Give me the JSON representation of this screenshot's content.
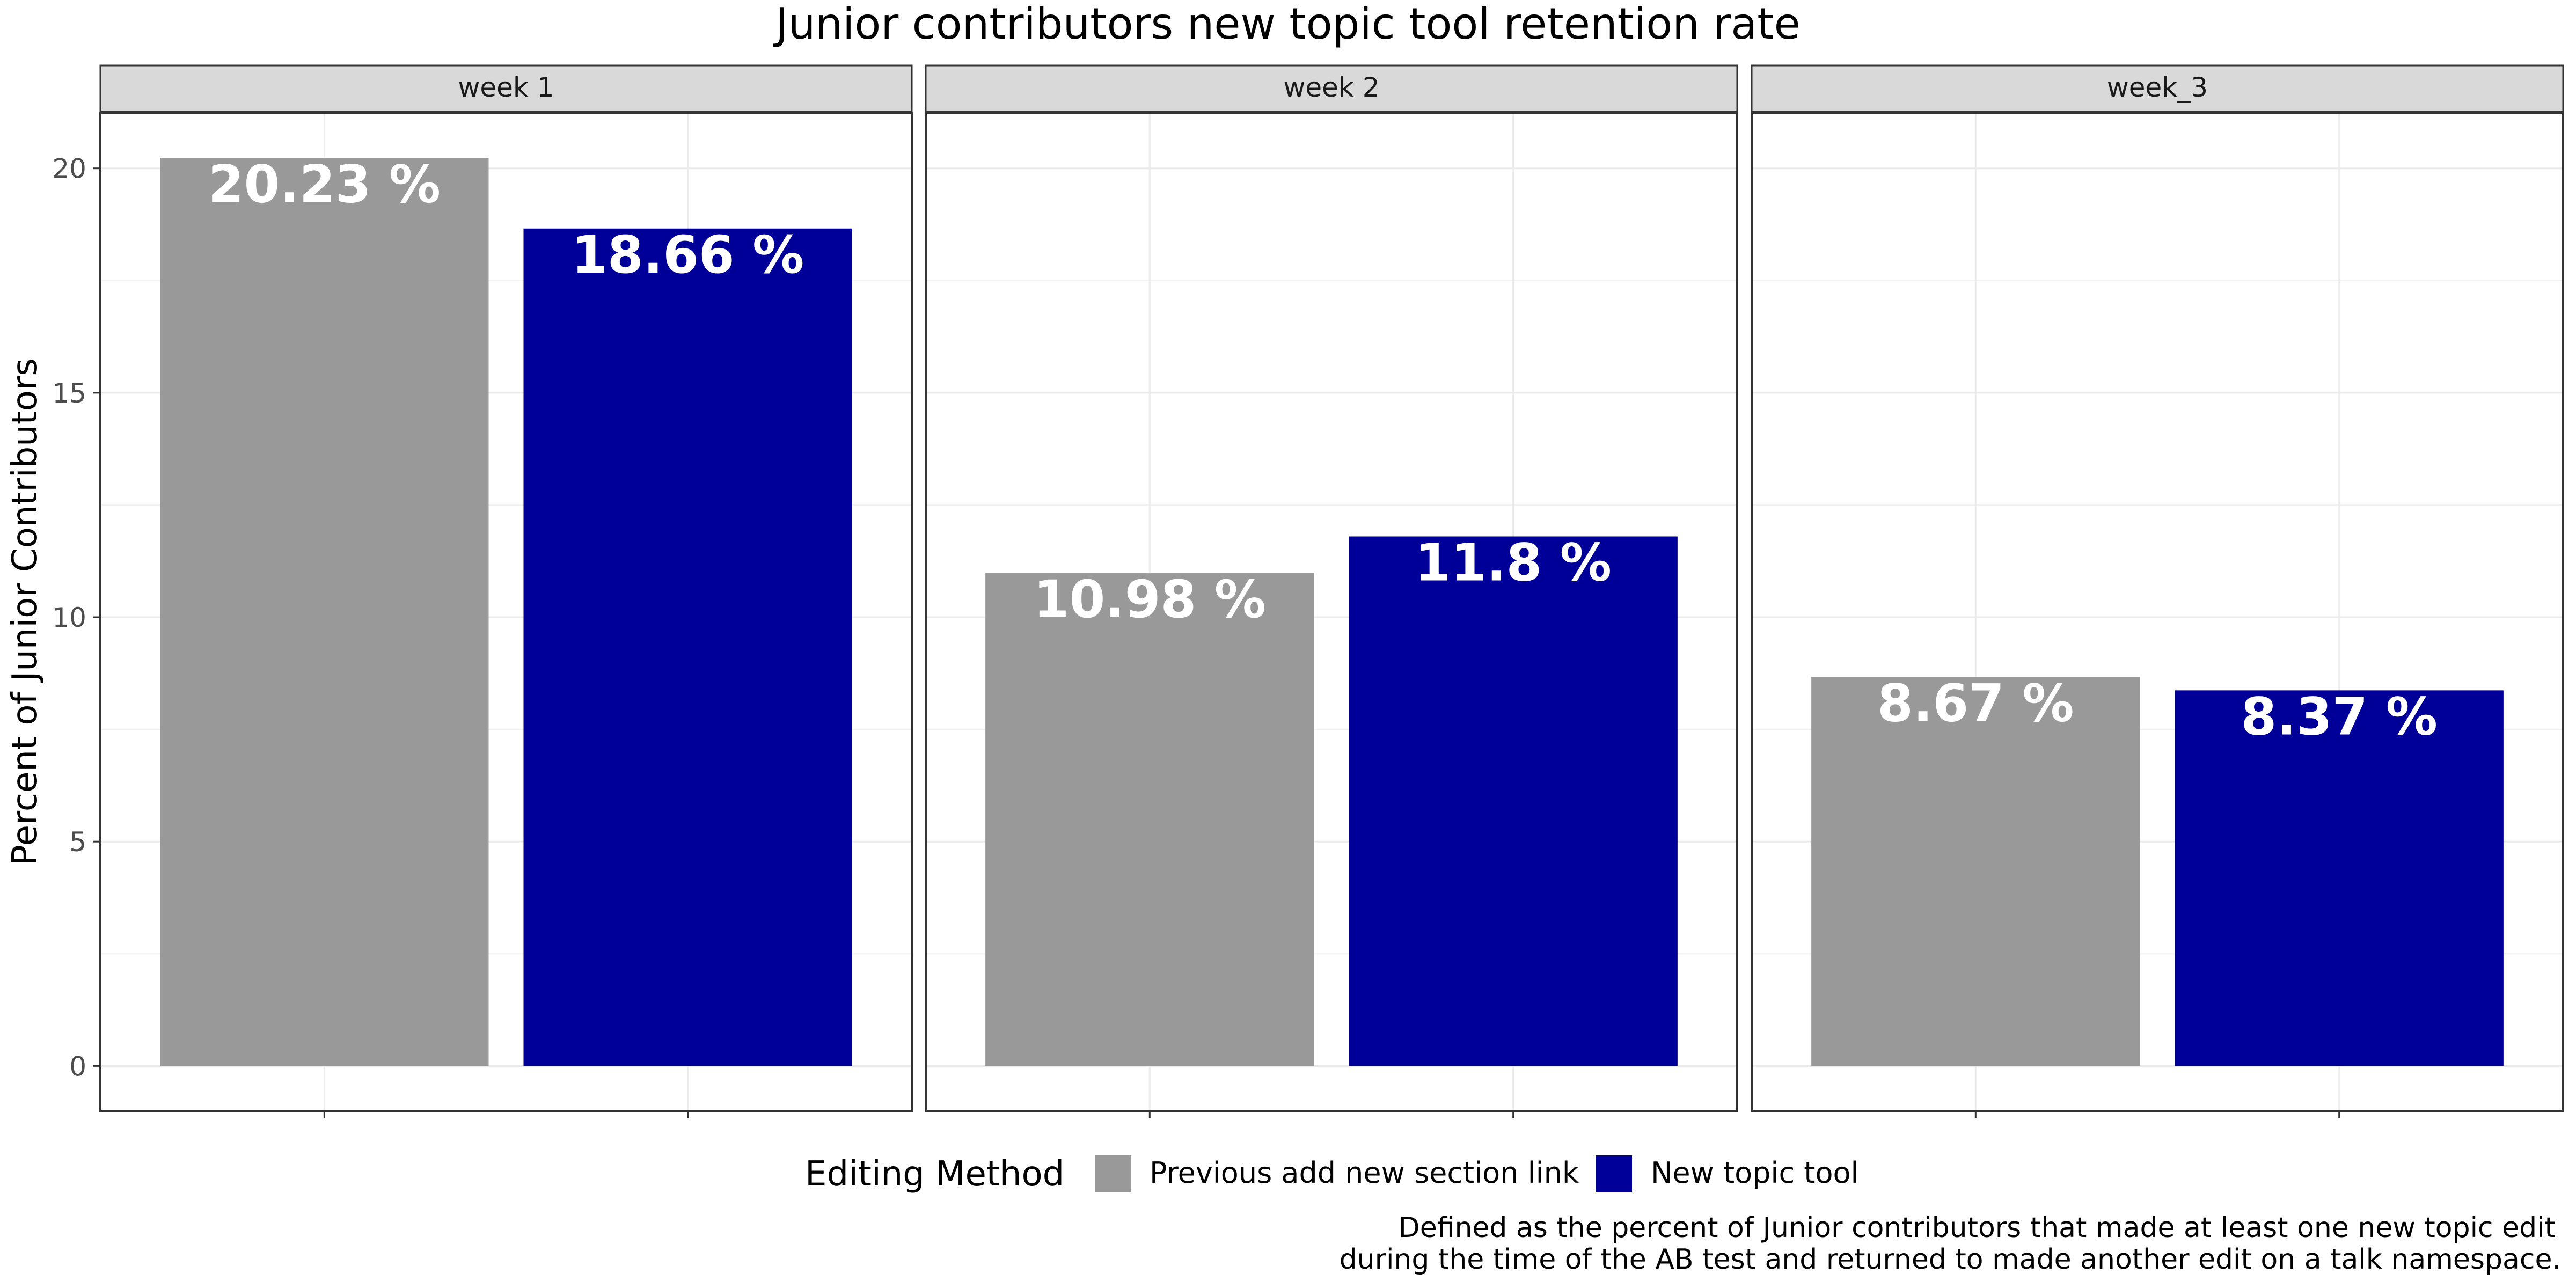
{
  "chart_data": {
    "type": "bar",
    "title": "Junior contributors new topic tool retention rate",
    "xlabel": "",
    "ylabel": "Percent of Junior Contributors",
    "ylim": [
      -1,
      21.24
    ],
    "yticks": [
      0,
      5,
      10,
      15,
      20
    ],
    "grid": true,
    "legend_position": "bottom",
    "legend_title": "Editing Method",
    "facets": [
      "week 1",
      "week 2",
      "week_3"
    ],
    "series": [
      {
        "name": "Previous add new section link",
        "color": "#999999",
        "values": [
          20.23,
          10.98,
          8.67
        ],
        "labels": [
          "20.23 %",
          "10.98 %",
          "8.67 %"
        ]
      },
      {
        "name": "New topic tool",
        "color": "#000099",
        "values": [
          18.66,
          11.8,
          8.37
        ],
        "labels": [
          "18.66 %",
          "11.8 %",
          "8.37 %"
        ]
      }
    ],
    "caption": [
      "Defined as the percent of Junior contributors that made at least one new topic edit",
      "during the time of the AB test and returned to made another edit on a talk namespace."
    ]
  }
}
